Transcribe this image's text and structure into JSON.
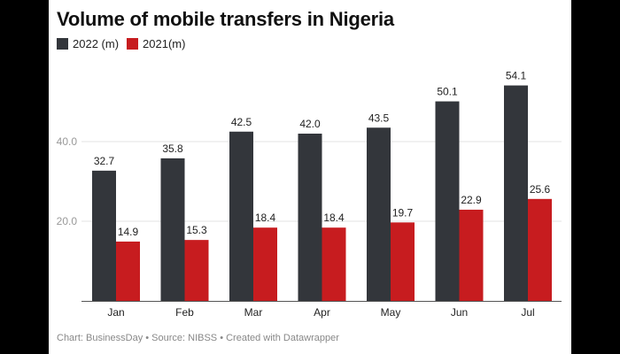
{
  "chart_data": {
    "type": "bar",
    "title": "Volume of mobile transfers in Nigeria",
    "categories": [
      "Jan",
      "Feb",
      "Mar",
      "Apr",
      "May",
      "Jun",
      "Jul"
    ],
    "series": [
      {
        "name": "2022 (m)",
        "color": "#33363b",
        "values": [
          32.7,
          35.8,
          42.5,
          42.0,
          43.5,
          50.1,
          54.1
        ]
      },
      {
        "name": "2021(m)",
        "color": "#c71c1f",
        "values": [
          14.9,
          15.3,
          18.4,
          18.4,
          19.7,
          22.9,
          25.6
        ]
      }
    ],
    "yticks": [
      20,
      40
    ],
    "ytick_labels": [
      "20.0",
      "40.0"
    ],
    "ylim": [
      0,
      54.1
    ],
    "grid": true,
    "legend_placement": "top-left",
    "xlabel": "",
    "ylabel": ""
  },
  "footer": "Chart: BusinessDay • Source: NIBSS • Created with Datawrapper"
}
